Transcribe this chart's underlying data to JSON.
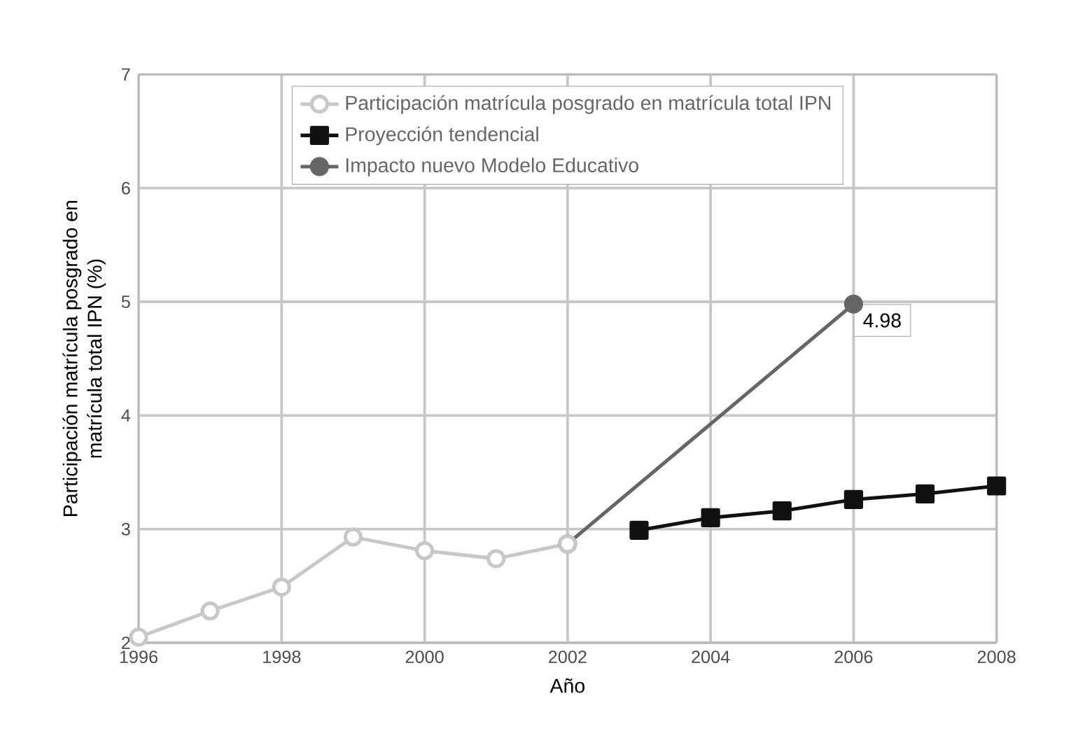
{
  "chart_data": {
    "type": "line",
    "xlabel": "Año",
    "ylabel": "Participación matrícula posgrado en matrícula total IPN (%)",
    "xlim": [
      1996,
      2008
    ],
    "xticks": [
      1996,
      1998,
      2000,
      2002,
      2004,
      2006,
      2008
    ],
    "ylim": [
      2,
      7
    ],
    "yticks": [
      2,
      3,
      4,
      5,
      6,
      7
    ],
    "grid": true,
    "legend": "top",
    "series": [
      {
        "name": "Participación matrícula posgrado en matrícula total IPN",
        "color": "#c8c8c8",
        "marker": "circle",
        "x": [
          1996,
          1997,
          1998,
          1999,
          2000,
          2001,
          2002
        ],
        "values": [
          2.05,
          2.28,
          2.49,
          2.93,
          2.81,
          2.74,
          2.87
        ]
      },
      {
        "name": "Proyección tendencial",
        "color": "#111111",
        "marker": "square",
        "x": [
          2003,
          2004,
          2005,
          2006,
          2007,
          2008
        ],
        "values": [
          2.99,
          3.1,
          3.16,
          3.26,
          3.31,
          3.38
        ]
      },
      {
        "name": "Impacto nuevo Modelo Educativo",
        "color": "#666666",
        "marker": "circle",
        "x": [
          2002,
          2006
        ],
        "values": [
          2.87,
          4.98
        ],
        "value_labels": [
          null,
          "4.98"
        ]
      }
    ]
  }
}
